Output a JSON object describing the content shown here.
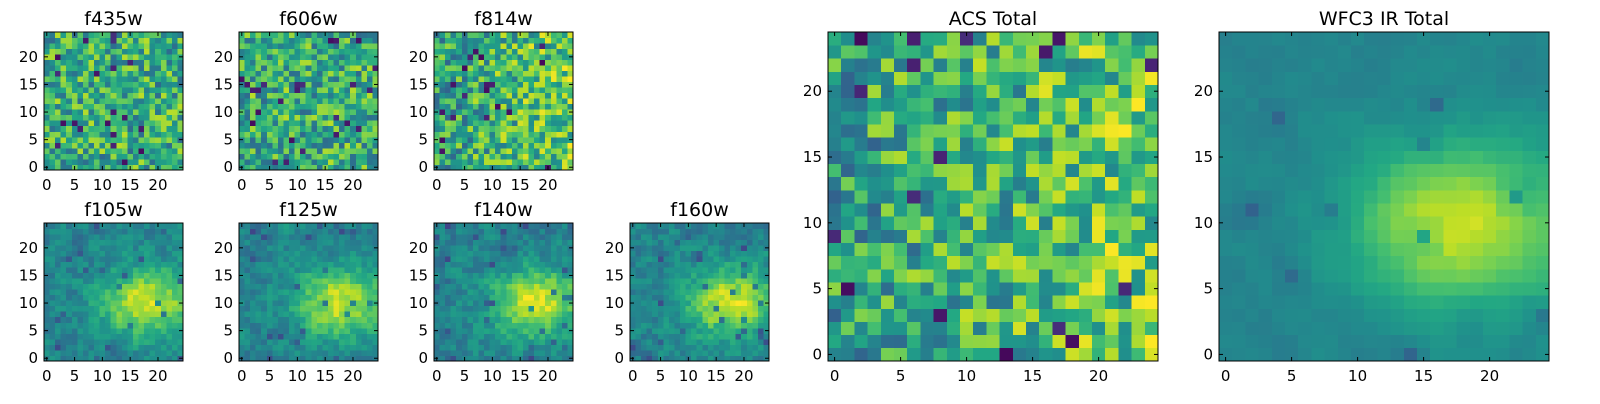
{
  "figure": {
    "background": "#ffffff",
    "colormap": "viridis"
  },
  "chart_data": [
    {
      "type": "heatmap",
      "title": "f435w",
      "rows": 25,
      "cols": 25,
      "seed": 11,
      "pattern": "noise",
      "xticks": [
        0,
        5,
        10,
        15,
        20
      ],
      "yticks": [
        0,
        5,
        10,
        15,
        20
      ],
      "xlim": [
        -0.5,
        24.5
      ],
      "ylim": [
        -0.5,
        24.5
      ]
    },
    {
      "type": "heatmap",
      "title": "f606w",
      "rows": 25,
      "cols": 25,
      "seed": 23,
      "pattern": "noise",
      "xticks": [
        0,
        5,
        10,
        15,
        20
      ],
      "yticks": [
        0,
        5,
        10,
        15,
        20
      ],
      "xlim": [
        -0.5,
        24.5
      ],
      "ylim": [
        -0.5,
        24.5
      ]
    },
    {
      "type": "heatmap",
      "title": "f814w",
      "rows": 25,
      "cols": 25,
      "seed": 37,
      "pattern": "noise-bright-right",
      "xticks": [
        0,
        5,
        10,
        15,
        20
      ],
      "yticks": [
        0,
        5,
        10,
        15,
        20
      ],
      "xlim": [
        -0.5,
        24.5
      ],
      "ylim": [
        -0.5,
        24.5
      ]
    },
    {
      "type": "heatmap",
      "title": "f105w",
      "rows": 25,
      "cols": 25,
      "seed": 41,
      "pattern": "blob",
      "xticks": [
        0,
        5,
        10,
        15,
        20
      ],
      "yticks": [
        0,
        5,
        10,
        15,
        20
      ],
      "xlim": [
        -0.5,
        24.5
      ],
      "ylim": [
        -0.5,
        24.5
      ]
    },
    {
      "type": "heatmap",
      "title": "f125w",
      "rows": 25,
      "cols": 25,
      "seed": 53,
      "pattern": "blob",
      "xticks": [
        0,
        5,
        10,
        15,
        20
      ],
      "yticks": [
        0,
        5,
        10,
        15,
        20
      ],
      "xlim": [
        -0.5,
        24.5
      ],
      "ylim": [
        -0.5,
        24.5
      ]
    },
    {
      "type": "heatmap",
      "title": "f140w",
      "rows": 25,
      "cols": 25,
      "seed": 67,
      "pattern": "blob",
      "xticks": [
        0,
        5,
        10,
        15,
        20
      ],
      "yticks": [
        0,
        5,
        10,
        15,
        20
      ],
      "xlim": [
        -0.5,
        24.5
      ],
      "ylim": [
        -0.5,
        24.5
      ]
    },
    {
      "type": "heatmap",
      "title": "f160w",
      "rows": 25,
      "cols": 25,
      "seed": 79,
      "pattern": "blob",
      "xticks": [
        0,
        5,
        10,
        15,
        20
      ],
      "yticks": [
        0,
        5,
        10,
        15,
        20
      ],
      "xlim": [
        -0.5,
        24.5
      ],
      "ylim": [
        -0.5,
        24.5
      ]
    },
    {
      "type": "heatmap",
      "title": "ACS Total",
      "rows": 25,
      "cols": 25,
      "seed": 97,
      "pattern": "noise-bright-right",
      "xticks": [
        0,
        5,
        10,
        15,
        20
      ],
      "yticks": [
        0,
        5,
        10,
        15,
        20
      ],
      "xlim": [
        -0.5,
        24.5
      ],
      "ylim": [
        -0.5,
        24.5
      ]
    },
    {
      "type": "heatmap",
      "title": "WFC3 IR Total",
      "rows": 25,
      "cols": 25,
      "seed": 131,
      "pattern": "blob-smooth",
      "xticks": [
        0,
        5,
        10,
        15,
        20
      ],
      "yticks": [
        0,
        5,
        10,
        15,
        20
      ],
      "xlim": [
        -0.5,
        24.5
      ],
      "ylim": [
        -0.5,
        24.5
      ]
    }
  ]
}
